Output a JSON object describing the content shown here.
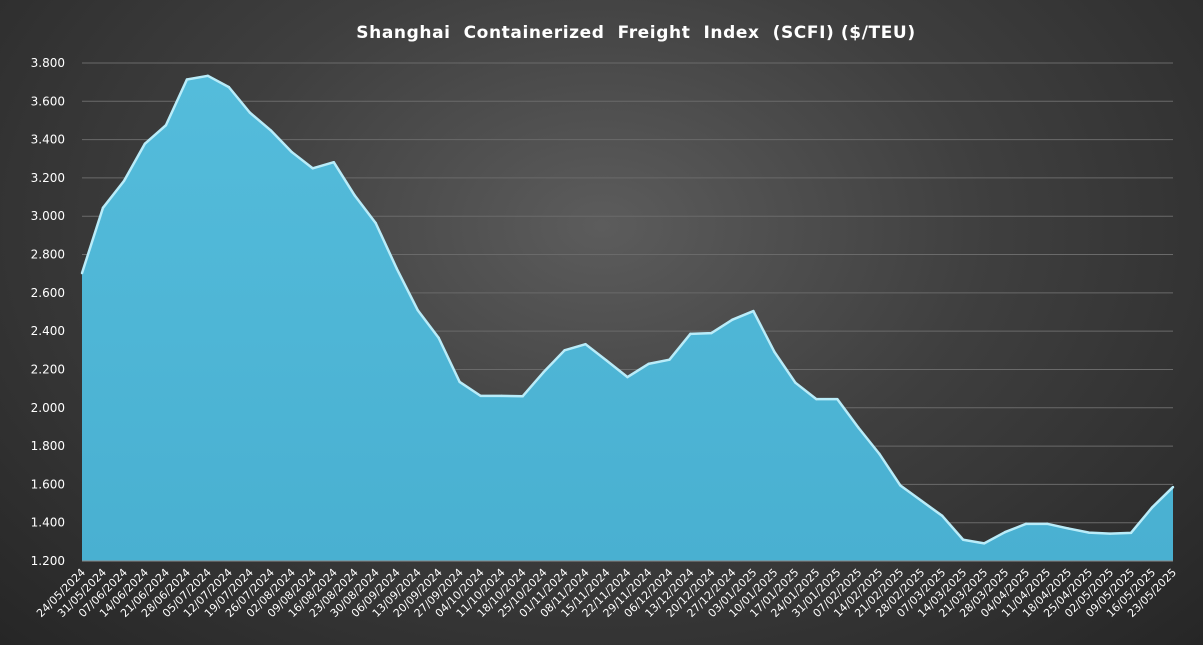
{
  "chart_data": {
    "type": "area",
    "title": "Shanghai  Containerized  Freight  Index  (SCFI) ($/TEU)",
    "xlabel": "",
    "ylabel": "",
    "ylim": [
      1200,
      3800
    ],
    "yticks": [
      1200,
      1400,
      1600,
      1800,
      2000,
      2200,
      2400,
      2600,
      2800,
      3000,
      3200,
      3400,
      3600,
      3800
    ],
    "ytick_labels": [
      "1.200",
      "1.400",
      "1.600",
      "1.800",
      "2.000",
      "2.200",
      "2.400",
      "2.600",
      "2.800",
      "3.000",
      "3.200",
      "3.400",
      "3.600",
      "3.800"
    ],
    "grid": true,
    "legend": "none",
    "colors": {
      "fill": "#4eb6d6",
      "line": "#b9ecf9"
    },
    "x": [
      "24/05/2024",
      "31/05/2024",
      "07/06/2024",
      "14/06/2024",
      "21/06/2024",
      "28/06/2024",
      "05/07/2024",
      "12/07/2024",
      "19/07/2024",
      "26/07/2024",
      "02/08/2024",
      "09/08/2024",
      "16/08/2024",
      "23/08/2024",
      "30/08/2024",
      "06/09/2024",
      "13/09/2024",
      "20/09/2024",
      "27/09/2024",
      "04/10/2024",
      "11/10/2024",
      "18/10/2024",
      "25/10/2024",
      "01/11/2024",
      "08/11/2024",
      "15/11/2024",
      "22/11/2024",
      "29/11/2024",
      "06/12/2024",
      "13/12/2024",
      "20/12/2024",
      "27/12/2024",
      "03/01/2025",
      "10/01/2025",
      "17/01/2025",
      "24/01/2025",
      "31/01/2025",
      "07/02/2025",
      "14/02/2025",
      "21/02/2025",
      "28/02/2025",
      "07/03/2025",
      "14/03/2025",
      "21/03/2025",
      "28/03/2025",
      "04/04/2025",
      "11/04/2025",
      "18/04/2025",
      "25/04/2025",
      "02/05/2025",
      "09/05/2025",
      "16/05/2025",
      "23/05/2025"
    ],
    "series": [
      {
        "values": [
          2703,
          3044,
          3184,
          3379,
          3475,
          3714,
          3733,
          3674,
          3541,
          3448,
          3335,
          3250,
          3282,
          3108,
          2964,
          2727,
          2510,
          2365,
          2135,
          2062,
          2062,
          2060,
          2186,
          2300,
          2332,
          2247,
          2160,
          2229,
          2251,
          2386,
          2390,
          2460,
          2505,
          2292,
          2131,
          2045,
          2045,
          1897,
          1760,
          1595,
          1515,
          1436,
          1311,
          1292,
          1351,
          1394,
          1394,
          1370,
          1348,
          1343,
          1347,
          1479,
          1586
        ]
      }
    ]
  }
}
